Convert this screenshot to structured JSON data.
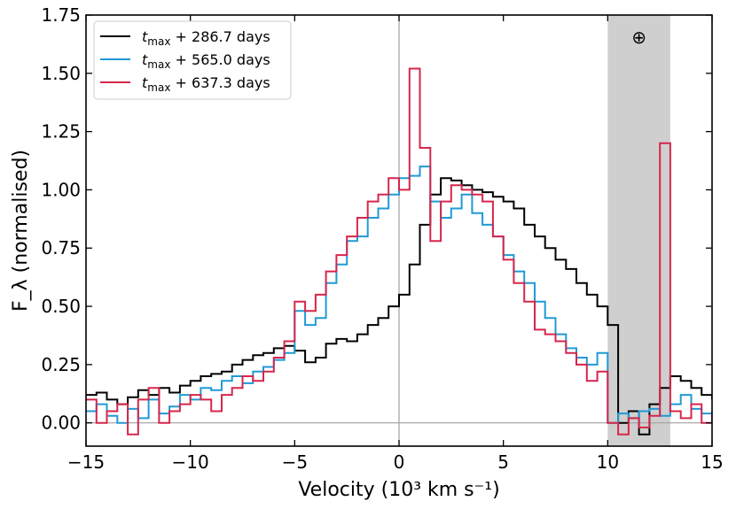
{
  "chart_data": {
    "type": "line",
    "step": true,
    "xlabel": "Velocity (10³ km s⁻¹)",
    "ylabel": "F_λ (normalised)",
    "xlim": [
      -15,
      15
    ],
    "ylim": [
      -0.1,
      1.75
    ],
    "xticks": [
      -15,
      -10,
      -5,
      0,
      5,
      10,
      15
    ],
    "xtick_labels": [
      "−15",
      "−10",
      "−5",
      "0",
      "5",
      "10",
      "15"
    ],
    "yticks": [
      0.0,
      0.25,
      0.5,
      0.75,
      1.0,
      1.25,
      1.5,
      1.75
    ],
    "ytick_labels": [
      "0.00",
      "0.25",
      "0.50",
      "0.75",
      "1.00",
      "1.25",
      "1.50",
      "1.75"
    ],
    "reference_lines": {
      "x": 0,
      "y": 0
    },
    "telluric_band": {
      "x0": 10,
      "x1": 13,
      "symbol": "⊕",
      "color": "#cfcfcf"
    },
    "legend": {
      "location": "top-left"
    },
    "series": [
      {
        "name": "t_max + 286.7 days",
        "name_base": "t",
        "name_sub": "max",
        "name_rest": " + 286.7 days",
        "color": "#000000",
        "x": [
          -15.0,
          -14.5,
          -14.0,
          -13.5,
          -13.0,
          -12.5,
          -12.0,
          -11.5,
          -11.0,
          -10.5,
          -10.0,
          -9.5,
          -9.0,
          -8.5,
          -8.0,
          -7.5,
          -7.0,
          -6.5,
          -6.0,
          -5.5,
          -5.0,
          -4.5,
          -4.0,
          -3.5,
          -3.0,
          -2.5,
          -2.0,
          -1.5,
          -1.0,
          -0.5,
          0.0,
          0.5,
          1.0,
          1.5,
          2.0,
          2.5,
          3.0,
          3.5,
          4.0,
          4.5,
          5.0,
          5.5,
          6.0,
          6.5,
          7.0,
          7.5,
          8.0,
          8.5,
          9.0,
          9.5,
          10.0,
          10.5,
          11.0,
          11.5,
          12.0,
          12.5,
          13.0,
          13.5,
          14.0,
          14.5,
          15.0
        ],
        "y": [
          0.12,
          0.13,
          0.1,
          0.08,
          0.11,
          0.14,
          0.12,
          0.15,
          0.13,
          0.16,
          0.18,
          0.2,
          0.21,
          0.22,
          0.25,
          0.27,
          0.29,
          0.3,
          0.32,
          0.33,
          0.31,
          0.26,
          0.28,
          0.34,
          0.36,
          0.35,
          0.38,
          0.42,
          0.45,
          0.5,
          0.55,
          0.68,
          0.85,
          0.98,
          1.05,
          1.04,
          1.02,
          1.0,
          0.99,
          0.97,
          0.95,
          0.92,
          0.85,
          0.8,
          0.75,
          0.7,
          0.66,
          0.6,
          0.55,
          0.5,
          0.42,
          0.0,
          0.05,
          -0.05,
          0.08,
          0.15,
          0.2,
          0.18,
          0.15,
          0.12,
          0.1
        ]
      },
      {
        "name": "t_max + 565.0 days",
        "name_base": "t",
        "name_sub": "max",
        "name_rest": " + 565.0 days",
        "color": "#1f9ad6",
        "x": [
          -15.0,
          -14.5,
          -14.0,
          -13.5,
          -13.0,
          -12.5,
          -12.0,
          -11.5,
          -11.0,
          -10.5,
          -10.0,
          -9.5,
          -9.0,
          -8.5,
          -8.0,
          -7.5,
          -7.0,
          -6.5,
          -6.0,
          -5.5,
          -5.0,
          -4.5,
          -4.0,
          -3.5,
          -3.0,
          -2.5,
          -2.0,
          -1.5,
          -1.0,
          -0.5,
          0.0,
          0.5,
          1.0,
          1.5,
          2.0,
          2.5,
          3.0,
          3.5,
          4.0,
          4.5,
          5.0,
          5.5,
          6.0,
          6.5,
          7.0,
          7.5,
          8.0,
          8.5,
          9.0,
          9.5,
          10.0,
          10.5,
          11.0,
          11.5,
          12.0,
          12.5,
          13.0,
          13.5,
          14.0,
          14.5,
          15.0
        ],
        "y": [
          0.05,
          0.08,
          0.03,
          0.0,
          0.06,
          0.02,
          0.1,
          0.04,
          0.07,
          0.12,
          0.1,
          0.15,
          0.14,
          0.18,
          0.2,
          0.17,
          0.22,
          0.24,
          0.27,
          0.3,
          0.48,
          0.42,
          0.45,
          0.6,
          0.68,
          0.78,
          0.8,
          0.88,
          0.92,
          0.98,
          1.05,
          1.06,
          1.1,
          0.95,
          0.88,
          0.92,
          0.98,
          0.9,
          0.85,
          0.8,
          0.72,
          0.65,
          0.6,
          0.52,
          0.45,
          0.38,
          0.32,
          0.28,
          0.25,
          0.3,
          0.0,
          0.04,
          0.02,
          0.05,
          0.06,
          0.03,
          0.08,
          0.12,
          0.06,
          0.04,
          0.05
        ]
      },
      {
        "name": "t_max + 637.3 days",
        "name_base": "t",
        "name_sub": "max",
        "name_rest": " + 637.3 days",
        "color": "#d6264b",
        "x": [
          -15.0,
          -14.5,
          -14.0,
          -13.5,
          -13.0,
          -12.5,
          -12.0,
          -11.5,
          -11.0,
          -10.5,
          -10.0,
          -9.5,
          -9.0,
          -8.5,
          -8.0,
          -7.5,
          -7.0,
          -6.5,
          -6.0,
          -5.5,
          -5.0,
          -4.5,
          -4.0,
          -3.5,
          -3.0,
          -2.5,
          -2.0,
          -1.5,
          -1.0,
          -0.5,
          0.0,
          0.5,
          1.0,
          1.5,
          2.0,
          2.5,
          3.0,
          3.5,
          4.0,
          4.5,
          5.0,
          5.5,
          6.0,
          6.5,
          7.0,
          7.5,
          8.0,
          8.5,
          9.0,
          9.5,
          10.0,
          10.5,
          11.0,
          11.5,
          12.0,
          12.5,
          13.0,
          13.5,
          14.0,
          14.5,
          15.0
        ],
        "y": [
          0.1,
          0.0,
          0.05,
          0.08,
          -0.05,
          0.1,
          0.15,
          0.0,
          0.05,
          0.08,
          0.12,
          0.1,
          0.05,
          0.12,
          0.15,
          0.2,
          0.18,
          0.22,
          0.28,
          0.35,
          0.52,
          0.48,
          0.55,
          0.65,
          0.72,
          0.8,
          0.88,
          0.95,
          0.98,
          1.05,
          1.0,
          1.52,
          1.18,
          0.78,
          0.95,
          1.02,
          1.0,
          0.98,
          0.95,
          0.8,
          0.7,
          0.6,
          0.52,
          0.4,
          0.38,
          0.35,
          0.3,
          0.25,
          0.18,
          0.22,
          0.0,
          -0.05,
          0.02,
          -0.02,
          0.03,
          1.2,
          0.05,
          0.02,
          0.08,
          0.0,
          0.05
        ]
      }
    ]
  }
}
